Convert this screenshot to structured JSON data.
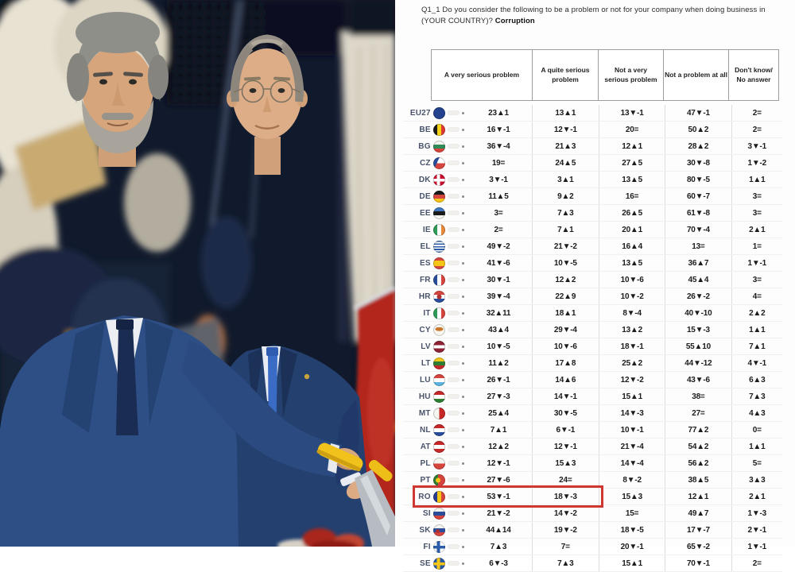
{
  "photo": {
    "description": "Two men in dark blue suits jointly holding a yellow-handled knife, cutting at a ceremony; honor guards in white uniforms and a red carpet in the background. Left man has thick gray hair and a gray beard; right man is balding and wears rimless glasses."
  },
  "chart_data": {
    "type": "table",
    "title": "Q1_1 Do you consider the following to be a problem or not for your company when doing business in (YOUR COUNTRY)?",
    "topic": "Corruption",
    "columns": [
      "A very serious problem",
      "A quite serious problem",
      "Not a very serious problem",
      "Not a problem at all",
      "Don't know/ No answer"
    ],
    "highlighted_row": "RO",
    "highlight_color": "#cf3832",
    "legend": {
      "up_symbol": "▲",
      "down_symbol": "▼",
      "no_change_symbol": "="
    },
    "rows": [
      {
        "code": "EU27",
        "flag": "eu",
        "values": [
          "23▲1",
          "13▲1",
          "13▼-1",
          "47▼-1",
          "2="
        ]
      },
      {
        "code": "BE",
        "flag": "be",
        "values": [
          "16▼-1",
          "12▼-1",
          "20=",
          "50▲2",
          "2="
        ]
      },
      {
        "code": "BG",
        "flag": "bg",
        "values": [
          "36▼-4",
          "21▲3",
          "12▲1",
          "28▲2",
          "3▼-1"
        ]
      },
      {
        "code": "CZ",
        "flag": "cz",
        "values": [
          "19=",
          "24▲5",
          "27▲5",
          "30▼-8",
          "1▼-2"
        ]
      },
      {
        "code": "DK",
        "flag": "dk",
        "values": [
          "3▼-1",
          "3▲1",
          "13▲5",
          "80▼-5",
          "1▲1"
        ]
      },
      {
        "code": "DE",
        "flag": "de",
        "values": [
          "11▲5",
          "9▲2",
          "16=",
          "60▼-7",
          "3="
        ]
      },
      {
        "code": "EE",
        "flag": "ee",
        "values": [
          "3=",
          "7▲3",
          "26▲5",
          "61▼-8",
          "3="
        ]
      },
      {
        "code": "IE",
        "flag": "ie",
        "values": [
          "2=",
          "7▲1",
          "20▲1",
          "70▼-4",
          "2▲1"
        ]
      },
      {
        "code": "EL",
        "flag": "el",
        "values": [
          "49▼-2",
          "21▼-2",
          "16▲4",
          "13=",
          "1="
        ]
      },
      {
        "code": "ES",
        "flag": "es",
        "values": [
          "41▼-6",
          "10▼-5",
          "13▲5",
          "36▲7",
          "1▼-1"
        ]
      },
      {
        "code": "FR",
        "flag": "fr",
        "values": [
          "30▼-1",
          "12▲2",
          "10▼-6",
          "45▲4",
          "3="
        ]
      },
      {
        "code": "HR",
        "flag": "hr",
        "values": [
          "39▼-4",
          "22▲9",
          "10▼-2",
          "26▼-2",
          "4="
        ]
      },
      {
        "code": "IT",
        "flag": "it",
        "values": [
          "32▲11",
          "18▲1",
          "8▼-4",
          "40▼-10",
          "2▲2"
        ]
      },
      {
        "code": "CY",
        "flag": "cy",
        "values": [
          "43▲4",
          "29▼-4",
          "13▲2",
          "15▼-3",
          "1▲1"
        ]
      },
      {
        "code": "LV",
        "flag": "lv",
        "values": [
          "10▼-5",
          "10▼-6",
          "18▼-1",
          "55▲10",
          "7▲1"
        ]
      },
      {
        "code": "LT",
        "flag": "lt",
        "values": [
          "11▲2",
          "17▲8",
          "25▲2",
          "44▼-12",
          "4▼-1"
        ]
      },
      {
        "code": "LU",
        "flag": "lu",
        "values": [
          "26▼-1",
          "14▲6",
          "12▼-2",
          "43▼-6",
          "6▲3"
        ]
      },
      {
        "code": "HU",
        "flag": "hu",
        "values": [
          "27▼-3",
          "14▼-1",
          "15▲1",
          "38=",
          "7▲3"
        ]
      },
      {
        "code": "MT",
        "flag": "mt",
        "values": [
          "25▲4",
          "30▼-5",
          "14▼-3",
          "27=",
          "4▲3"
        ]
      },
      {
        "code": "NL",
        "flag": "nl",
        "values": [
          "7▲1",
          "6▼-1",
          "10▼-1",
          "77▲2",
          "0="
        ]
      },
      {
        "code": "AT",
        "flag": "at",
        "values": [
          "12▲2",
          "12▼-1",
          "21▼-4",
          "54▲2",
          "1▲1"
        ]
      },
      {
        "code": "PL",
        "flag": "pl",
        "values": [
          "12▼-1",
          "15▲3",
          "14▼-4",
          "56▲2",
          "5="
        ]
      },
      {
        "code": "PT",
        "flag": "pt",
        "values": [
          "27▼-6",
          "24=",
          "8▼-2",
          "38▲5",
          "3▲3"
        ]
      },
      {
        "code": "RO",
        "flag": "ro",
        "values": [
          "53▼-1",
          "18▼-3",
          "15▲3",
          "12▲1",
          "2▲1"
        ]
      },
      {
        "code": "SI",
        "flag": "si",
        "values": [
          "21▼-2",
          "14▼-2",
          "15=",
          "49▲7",
          "1▼-3"
        ]
      },
      {
        "code": "SK",
        "flag": "sk",
        "values": [
          "44▲14",
          "19▼-2",
          "18▼-5",
          "17▼-7",
          "2▼-1"
        ]
      },
      {
        "code": "FI",
        "flag": "fi",
        "values": [
          "7▲3",
          "7=",
          "20▼-1",
          "65▼-2",
          "1▼-1"
        ]
      },
      {
        "code": "SE",
        "flag": "se",
        "values": [
          "6▼-3",
          "7▲3",
          "15▲1",
          "70▼-1",
          "2="
        ]
      }
    ]
  }
}
